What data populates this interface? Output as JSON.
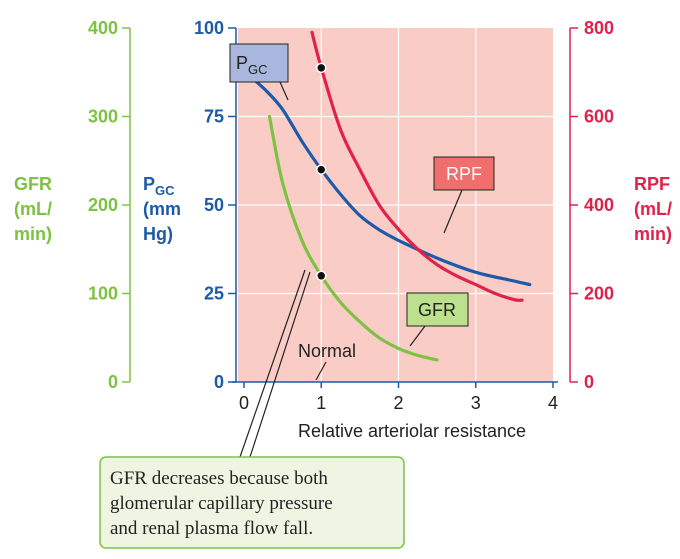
{
  "chart_data": {
    "type": "line",
    "xlabel": "Relative arteriolar resistance",
    "xlim": [
      0,
      4
    ],
    "x_ticks": [
      "0",
      "1",
      "2",
      "3",
      "4"
    ],
    "axes": {
      "gfr": {
        "label_lines": [
          "GFR",
          "(mL/",
          "min)"
        ],
        "ylim": [
          0,
          400
        ],
        "ticks": [
          "0",
          "100",
          "200",
          "300",
          "400"
        ],
        "color": "#7dc242"
      },
      "pgc": {
        "label_main": "P",
        "label_sub": "GC",
        "label_lines": [
          "(mm",
          "Hg)"
        ],
        "ylim": [
          0,
          100
        ],
        "ticks": [
          "0",
          "25",
          "50",
          "75",
          "100"
        ],
        "color": "#1e5aa8"
      },
      "rpf": {
        "label_lines": [
          "RPF",
          "(mL/",
          "min)"
        ],
        "ylim": [
          0,
          800
        ],
        "ticks": [
          "0",
          "200",
          "400",
          "600",
          "800"
        ],
        "color": "#e0224a"
      }
    },
    "series": [
      {
        "name": "GFR",
        "axis": "gfr",
        "color": "#7dc242",
        "points": [
          [
            0.33,
            300
          ],
          [
            0.5,
            225
          ],
          [
            0.75,
            160
          ],
          [
            1.0,
            120
          ],
          [
            1.25,
            90
          ],
          [
            1.5,
            68
          ],
          [
            1.75,
            50
          ],
          [
            2.0,
            38
          ],
          [
            2.25,
            30
          ],
          [
            2.5,
            25
          ]
        ]
      },
      {
        "name": "PGC",
        "axis": "pgc",
        "color": "#1e5aa8",
        "points": [
          [
            0.1,
            86
          ],
          [
            0.3,
            82
          ],
          [
            0.5,
            77
          ],
          [
            0.75,
            68
          ],
          [
            1.0,
            60
          ],
          [
            1.25,
            53
          ],
          [
            1.5,
            47
          ],
          [
            1.75,
            43
          ],
          [
            2.0,
            40
          ],
          [
            2.5,
            35
          ],
          [
            3.0,
            31
          ],
          [
            3.5,
            28.5
          ],
          [
            3.7,
            27.5
          ]
        ]
      },
      {
        "name": "RPF",
        "axis": "rpf",
        "color": "#e0224a",
        "points": [
          [
            0.88,
            790
          ],
          [
            1.0,
            710
          ],
          [
            1.25,
            570
          ],
          [
            1.5,
            480
          ],
          [
            1.75,
            400
          ],
          [
            2.0,
            345
          ],
          [
            2.25,
            300
          ],
          [
            2.5,
            265
          ],
          [
            2.75,
            240
          ],
          [
            3.0,
            220
          ],
          [
            3.25,
            200
          ],
          [
            3.5,
            186
          ],
          [
            3.6,
            185
          ]
        ]
      }
    ],
    "normal_points": [
      {
        "axis": "gfr",
        "x": 1,
        "y": 120
      },
      {
        "axis": "pgc",
        "x": 1,
        "y": 60
      },
      {
        "axis": "rpf",
        "x": 1,
        "y": 710
      }
    ],
    "shaded_background": "#f9cdc6",
    "grid": true,
    "callouts": {
      "pgc": {
        "main": "P",
        "sub": "GC",
        "fill": "#a9b6dd"
      },
      "rpf": {
        "text": "RPF",
        "fill": "#f06e6b"
      },
      "gfr": {
        "text": "GFR",
        "fill": "#bde08f"
      },
      "normal": {
        "text": "Normal"
      }
    },
    "annotation": {
      "lines": [
        "GFR decreases because both",
        "glomerular capillary pressure",
        "and renal plasma flow fall."
      ],
      "fill": "#eef6e3",
      "border": "#7dc242"
    }
  }
}
